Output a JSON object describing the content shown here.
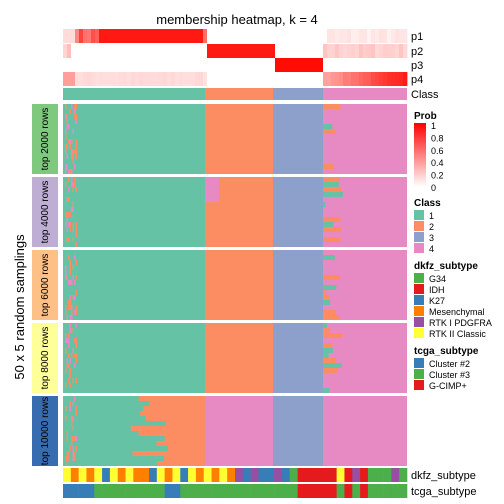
{
  "chart_data": {
    "type": "heatmap",
    "title": "membership heatmap, k = 4",
    "ylabel": "50 x 5 random samplings",
    "prob_rows": [
      "p1",
      "p2",
      "p3",
      "p4"
    ],
    "class_row_label": "Class",
    "groups": [
      {
        "name": "top 2000 rows",
        "color": "#7FC97F"
      },
      {
        "name": "top 4000 rows",
        "color": "#BEAED4"
      },
      {
        "name": "top 6000 rows",
        "color": "#FDC086"
      },
      {
        "name": "top 8000 rows",
        "color": "#FFFF99"
      },
      {
        "name": "top 10000 rows",
        "color": "#386CB0"
      }
    ],
    "class_blocks": [
      {
        "class": 1,
        "fraction": 0.36
      },
      {
        "class": 2,
        "fraction": 0.18
      },
      {
        "class": 3,
        "fraction": 0.13
      },
      {
        "class": 4,
        "fraction": 0.24
      }
    ],
    "bottom_annotations": [
      "dkfz_subtype",
      "tcga_subtype"
    ],
    "legends": {
      "prob": {
        "title": "Prob",
        "ticks": [
          "1",
          "0.8",
          "0.6",
          "0.4",
          "0.2",
          "0"
        ]
      },
      "class": {
        "title": "Class",
        "items": [
          {
            "label": "1",
            "color": "#66C2A5"
          },
          {
            "label": "2",
            "color": "#FC8D62"
          },
          {
            "label": "3",
            "color": "#8DA0CB"
          },
          {
            "label": "4",
            "color": "#E78AC3"
          }
        ]
      },
      "dkfz_subtype": {
        "title": "dkfz_subtype",
        "items": [
          {
            "label": "G34",
            "color": "#4DAF4A"
          },
          {
            "label": "IDH",
            "color": "#E41A1C"
          },
          {
            "label": "K27",
            "color": "#377EB8"
          },
          {
            "label": "Mesenchymal",
            "color": "#FF7F00"
          },
          {
            "label": "RTK I PDGFRA",
            "color": "#984EA3"
          },
          {
            "label": "RTK II Classic",
            "color": "#FFFF33"
          }
        ]
      },
      "tcga_subtype": {
        "title": "tcga_subtype",
        "items": [
          {
            "label": "Cluster #2",
            "color": "#377EB8"
          },
          {
            "label": "Cluster #3",
            "color": "#4DAF4A"
          },
          {
            "label": "G-CIMP+",
            "color": "#E41A1C"
          }
        ]
      }
    }
  }
}
